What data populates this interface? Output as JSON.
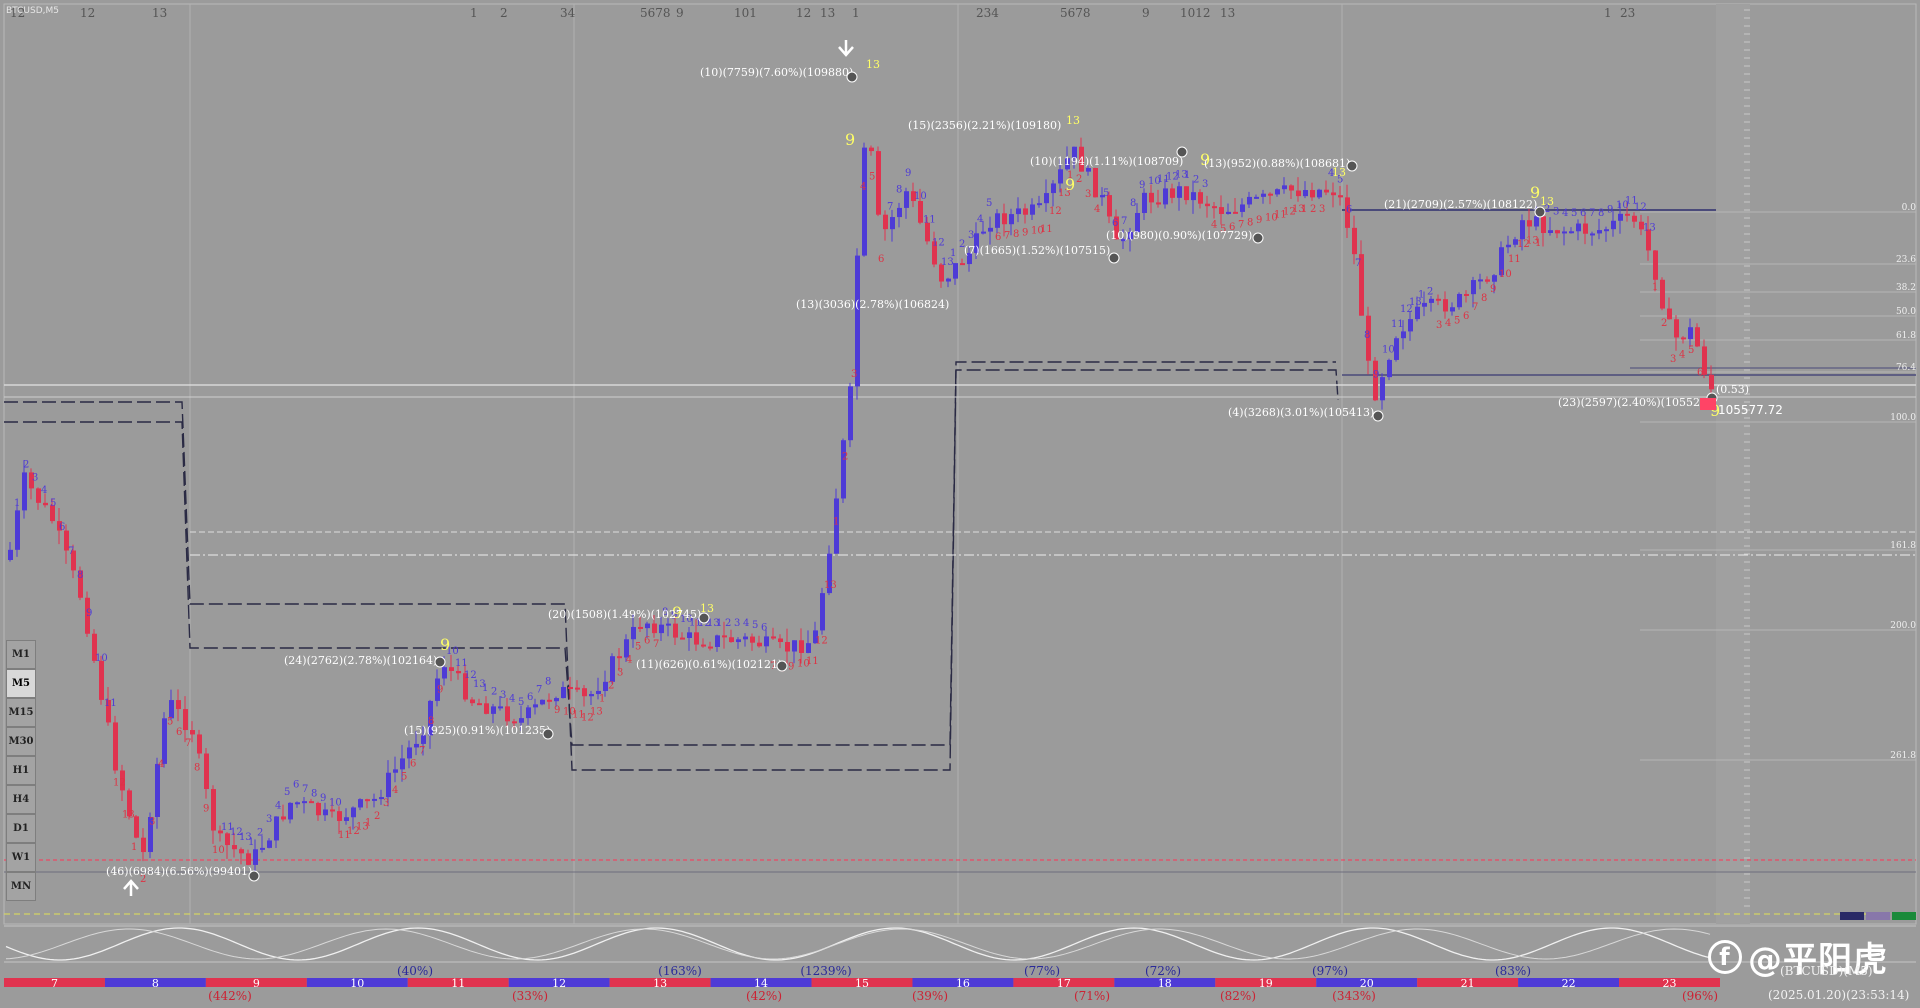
{
  "symbol": "BTCUSD,M5",
  "timeframes": [
    {
      "label": "M1",
      "active": false
    },
    {
      "label": "M5",
      "active": true
    },
    {
      "label": "M15",
      "active": false
    },
    {
      "label": "M30",
      "active": false
    },
    {
      "label": "H1",
      "active": false
    },
    {
      "label": "H4",
      "active": false
    },
    {
      "label": "D1",
      "active": false
    },
    {
      "label": "W1",
      "active": false
    },
    {
      "label": "MN",
      "active": false
    }
  ],
  "top_counts": [
    "12",
    "12",
    "13",
    "1",
    "2",
    "34",
    "5678",
    "9",
    "101",
    "12",
    "13",
    "1",
    "234",
    "5678",
    "9",
    "1012",
    "13",
    "1",
    "23"
  ],
  "current_price": "105577.72",
  "footer_symbol": "(BTCUSD)(M5)",
  "footer_date": "(2025.01.20)(23:53:14)",
  "watermark": "@平阳虎",
  "colors": {
    "bull": "#4e3bd6",
    "bear": "#e0334f",
    "count_up": "#ffff66",
    "count_down": "#dd3344",
    "background": "#9b9b9b"
  },
  "chart_data": {
    "type": "candlestick",
    "annotations": [
      "(46)(6984)(6.56%)(99401)",
      "(24)(2762)(2.78%)(102164)",
      "(15)(925)(0.91%)(101235)",
      "(20)(1508)(1.49%)(102745)",
      "(11)(626)(0.61%)(102121)",
      "(13)(3036)(2.78%)(106824)",
      "(10)(7759)(7.60%)(109880)",
      "(15)(2356)(2.21%)(109180)",
      "(7)(1665)(1.52%)(107515)",
      "(10)(1194)(1.11%)(108709)",
      "(10)(980)(0.90%)(107729)",
      "(13)(952)(0.88%)(108681)",
      "(4)(3268)(3.01%)(105413)",
      "(21)(2709)(2.57%)(108122)",
      "(23)(2597)(2.40%)(105525)",
      "(0.53)"
    ],
    "fib_levels": [
      "0.0",
      "23.6",
      "38.2",
      "50.0",
      "61.8",
      "76.4",
      "100.0",
      "161.8",
      "200.0",
      "261.8"
    ],
    "bottom_band": {
      "segments": [
        "7",
        "8",
        "9",
        "10",
        "11",
        "12",
        "13",
        "14",
        "15",
        "16",
        "17",
        "18",
        "19",
        "20",
        "21",
        "22",
        "23"
      ],
      "upper_pcts": [
        "(40%)",
        "(163%)",
        "(1239%)",
        "(77%)",
        "(72%)",
        "(97%)",
        "(83%)"
      ],
      "lower_pcts": [
        "(442%)",
        "(33%)",
        "(42%)",
        "(39%)",
        "(71%)",
        "(82%)",
        "(343%)",
        "(96%)"
      ]
    }
  }
}
